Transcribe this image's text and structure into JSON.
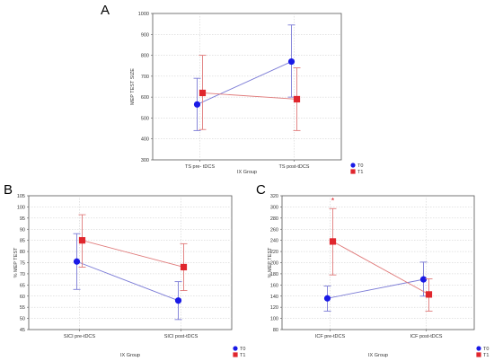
{
  "colors": {
    "T0": "#1a1ae6",
    "T1": "#e0262d",
    "T0_line": "#7b7bd6",
    "T1_line": "#e07b7b"
  },
  "chart_data": [
    {
      "panel": "A",
      "type": "line",
      "ylabel": "MEP TEST SIZE",
      "xlabel": "IX Group",
      "ylim": [
        300,
        1000
      ],
      "yticks": [
        "300",
        "400",
        "500",
        "600",
        "700",
        "800",
        "900",
        "1000"
      ],
      "categories": [
        "TS pre- tDCS",
        "TS post-tDCS"
      ],
      "grid": true,
      "legend_position": "bottom-right",
      "series": [
        {
          "name": "T0",
          "values": [
            565,
            770
          ],
          "lower": [
            440,
            600
          ],
          "upper": [
            690,
            945
          ]
        },
        {
          "name": "T1",
          "values": [
            620,
            590
          ],
          "lower": [
            445,
            440
          ],
          "upper": [
            800,
            740
          ]
        }
      ]
    },
    {
      "panel": "B",
      "type": "line",
      "ylabel": "% MEP TEST",
      "xlabel": "IX Group",
      "ylim": [
        45,
        105
      ],
      "yticks": [
        "45",
        "50",
        "55",
        "60",
        "65",
        "70",
        "75",
        "80",
        "85",
        "90",
        "95",
        "100",
        "105"
      ],
      "categories": [
        "SICI pre-tDCS",
        "SICI post-tDCS"
      ],
      "grid": true,
      "legend_position": "bottom-right",
      "series": [
        {
          "name": "T0",
          "values": [
            75.5,
            58
          ],
          "lower": [
            63,
            49.5
          ],
          "upper": [
            88,
            66.5
          ]
        },
        {
          "name": "T1",
          "values": [
            85,
            73
          ],
          "lower": [
            73,
            62.5
          ],
          "upper": [
            96.5,
            83.5
          ]
        }
      ]
    },
    {
      "panel": "C",
      "type": "line",
      "ylabel": "% MEP TEST",
      "xlabel": "IX Group",
      "ylim": [
        80,
        320
      ],
      "yticks": [
        "80",
        "100",
        "120",
        "140",
        "160",
        "180",
        "200",
        "220",
        "240",
        "260",
        "280",
        "300",
        "320"
      ],
      "categories": [
        "ICF pre-tDCS",
        "ICF post-tDCS"
      ],
      "grid": true,
      "legend_position": "bottom-right",
      "annotations": [
        {
          "text": "*",
          "category_index": 0
        }
      ],
      "series": [
        {
          "name": "T0",
          "values": [
            136,
            170
          ],
          "lower": [
            113,
            140
          ],
          "upper": [
            158,
            201
          ]
        },
        {
          "name": "T1",
          "values": [
            238,
            143
          ],
          "lower": [
            178,
            113
          ],
          "upper": [
            297,
            171
          ]
        }
      ]
    }
  ]
}
